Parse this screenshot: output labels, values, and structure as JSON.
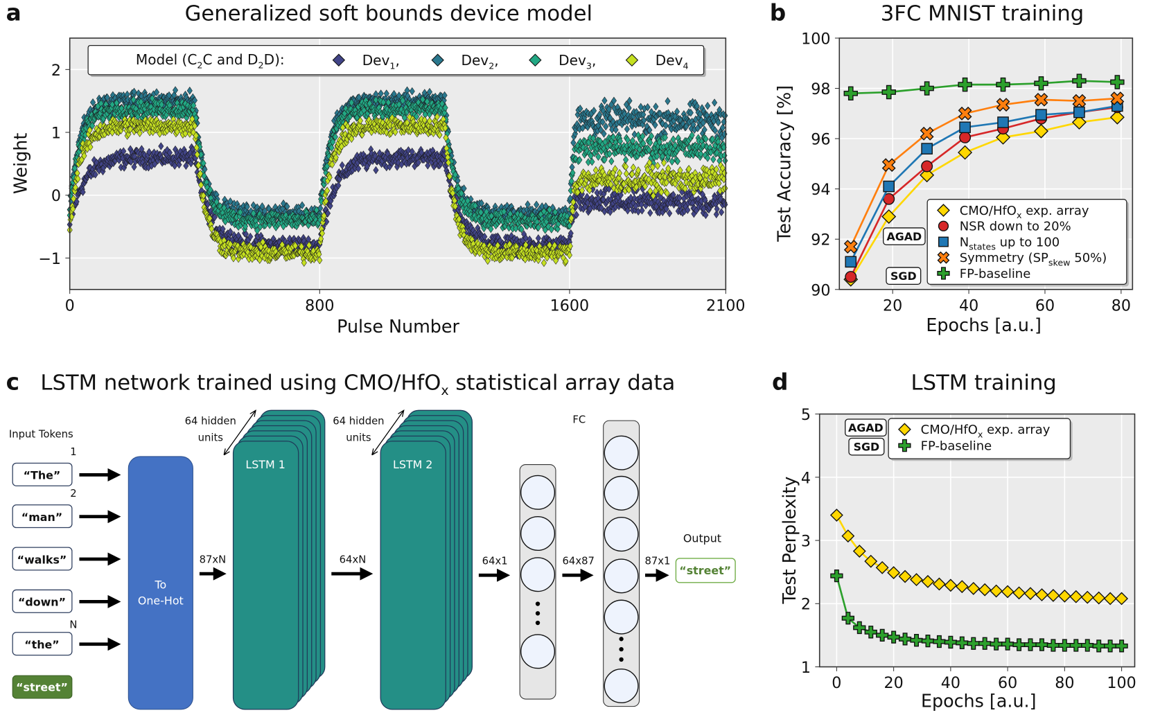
{
  "panel_labels": {
    "a": "a",
    "b": "b",
    "c": "c",
    "d": "d"
  },
  "chart_data": [
    {
      "id": "a",
      "type": "scatter",
      "title": "Generalized soft bounds device model",
      "xlabel": "Pulse Number",
      "ylabel": "Weight",
      "xlim": [
        0,
        2100
      ],
      "ylim": [
        -1.5,
        2.5
      ],
      "xticks": [
        0,
        800,
        1600,
        2100
      ],
      "xtick_labels": [
        "0",
        "800",
        "1600",
        "2100"
      ],
      "yticks": [
        -1,
        0,
        1,
        2
      ],
      "ytick_labels": [
        "−1",
        "0",
        "1",
        "2"
      ],
      "grid": true,
      "legend": {
        "placement": "top",
        "title_parts": [
          "Model (C",
          "2",
          "C and D",
          "2",
          "D):"
        ]
      },
      "phases": [
        {
          "pulses": [
            0,
            400
          ],
          "direction": "potentiation"
        },
        {
          "pulses": [
            400,
            800
          ],
          "direction": "depression"
        },
        {
          "pulses": [
            800,
            1200
          ],
          "direction": "potentiation"
        },
        {
          "pulses": [
            1200,
            1600
          ],
          "direction": "depression"
        },
        {
          "pulses": [
            1600,
            2100
          ],
          "direction": "random"
        }
      ],
      "series": [
        {
          "name": "Dev",
          "sub": "1",
          "suffix": ",",
          "color": "#414487",
          "weight_high": 0.6,
          "weight_low": -0.8,
          "weight_last_phase": -0.12
        },
        {
          "name": "Dev",
          "sub": "2",
          "suffix": ",",
          "color": "#2a788e",
          "weight_high": 1.5,
          "weight_low": -0.3,
          "weight_last_phase": 1.2
        },
        {
          "name": "Dev",
          "sub": "3",
          "suffix": ",",
          "color": "#22a884",
          "weight_high": 1.37,
          "weight_low": -0.4,
          "weight_last_phase": 0.75
        },
        {
          "name": "Dev",
          "sub": "4",
          "suffix": "",
          "color": "#c5e021",
          "weight_high": 1.1,
          "weight_low": -0.92,
          "weight_last_phase": 0.25
        }
      ]
    },
    {
      "id": "b",
      "type": "line",
      "title": "3FC MNIST training",
      "xlabel": "Epochs [a.u.]",
      "ylabel": "Test Accuracy [%]",
      "xlim": [
        6,
        83
      ],
      "ylim": [
        90,
        100
      ],
      "xticks": [
        20,
        40,
        60,
        80
      ],
      "yticks": [
        90,
        92,
        94,
        96,
        98,
        100
      ],
      "grid": true,
      "legend_placement": "lower-right",
      "badges": [
        "AGAD",
        "SGD"
      ],
      "x": [
        9,
        19,
        29,
        39,
        49,
        59,
        69,
        79
      ],
      "series": [
        {
          "label": "CMO/HfO",
          "sub": "x",
          "after": " exp. array",
          "marker": "diamond",
          "color": "#ffd700",
          "values": [
            90.4,
            92.9,
            94.55,
            95.45,
            96.05,
            96.3,
            96.65,
            96.85
          ]
        },
        {
          "label": "NSR down to 20%",
          "sub": "",
          "after": "",
          "marker": "circle",
          "color": "#d62728",
          "values": [
            90.5,
            93.6,
            94.9,
            96.05,
            96.4,
            96.8,
            97.05,
            97.25
          ]
        },
        {
          "label": "N",
          "sub": "states",
          "after": " up to 100",
          "marker": "square",
          "color": "#1f77b4",
          "values": [
            91.1,
            94.1,
            95.6,
            96.45,
            96.65,
            96.95,
            97.05,
            97.3
          ]
        },
        {
          "label": "Symmetry (SP",
          "sub": "skew",
          "after": " 50%)",
          "marker": "x",
          "color": "#ff7f0e",
          "values": [
            91.7,
            94.95,
            96.2,
            97.0,
            97.35,
            97.55,
            97.5,
            97.6
          ]
        },
        {
          "label": "FP-baseline",
          "sub": "",
          "after": "",
          "marker": "plus",
          "color": "#2ca02c",
          "values": [
            97.8,
            97.85,
            98.0,
            98.15,
            98.15,
            98.2,
            98.3,
            98.25
          ]
        }
      ]
    },
    {
      "id": "d",
      "type": "line",
      "title": "LSTM training",
      "xlabel": "Epochs [a.u.]",
      "ylabel": "Test Perplexity",
      "xlim": [
        -6,
        104.6
      ],
      "ylim": [
        1,
        5
      ],
      "xticks": [
        0,
        20,
        40,
        60,
        80,
        100
      ],
      "yticks": [
        1,
        2,
        3,
        4,
        5
      ],
      "grid": true,
      "legend_placement": "top",
      "badges": [
        "AGAD",
        "SGD"
      ],
      "x": [
        0,
        4,
        8,
        12,
        16,
        20,
        24,
        28,
        32,
        36,
        40,
        44,
        48,
        52,
        56,
        60,
        64,
        68,
        72,
        76,
        80,
        84,
        88,
        92,
        96,
        100
      ],
      "series": [
        {
          "label": "CMO/HfO",
          "sub": "x",
          "after": " exp. array",
          "marker": "diamond",
          "color": "#ffd700",
          "values": [
            3.4,
            3.07,
            2.83,
            2.67,
            2.57,
            2.49,
            2.43,
            2.38,
            2.35,
            2.31,
            2.29,
            2.27,
            2.24,
            2.22,
            2.2,
            2.19,
            2.17,
            2.16,
            2.14,
            2.13,
            2.12,
            2.11,
            2.1,
            2.09,
            2.08,
            2.08
          ]
        },
        {
          "label": "FP-baseline",
          "sub": "",
          "after": "",
          "marker": "plus",
          "color": "#2ca02c",
          "values": [
            2.44,
            1.77,
            1.62,
            1.55,
            1.5,
            1.47,
            1.44,
            1.42,
            1.41,
            1.4,
            1.39,
            1.38,
            1.37,
            1.37,
            1.36,
            1.36,
            1.35,
            1.35,
            1.35,
            1.34,
            1.34,
            1.34,
            1.34,
            1.33,
            1.33,
            1.33
          ]
        }
      ]
    }
  ],
  "diagram": {
    "title_parts": [
      "LSTM network trained using CMO/HfO",
      "x",
      " statistical array data"
    ],
    "input_tokens_label": "Input Tokens",
    "tokens": [
      "“The”",
      "“man”",
      "“walks”",
      "“down”",
      "“the”"
    ],
    "token_indices": [
      "1",
      "2",
      "N"
    ],
    "target_token": "“street”",
    "onehot_label": [
      "To",
      "One-Hot"
    ],
    "lstm1_label": "LSTM 1",
    "lstm2_label": "LSTM 2",
    "hidden_units": [
      "64 hidden",
      "units"
    ],
    "fc_label": "FC",
    "dims": [
      "87xN",
      "64xN",
      "64x1",
      "64x87",
      "87x1"
    ],
    "output_label": "Output",
    "output_token": "“street”",
    "colors": {
      "onehot": "#4472c4",
      "lstm": "#248f86",
      "target": "#548235"
    }
  }
}
